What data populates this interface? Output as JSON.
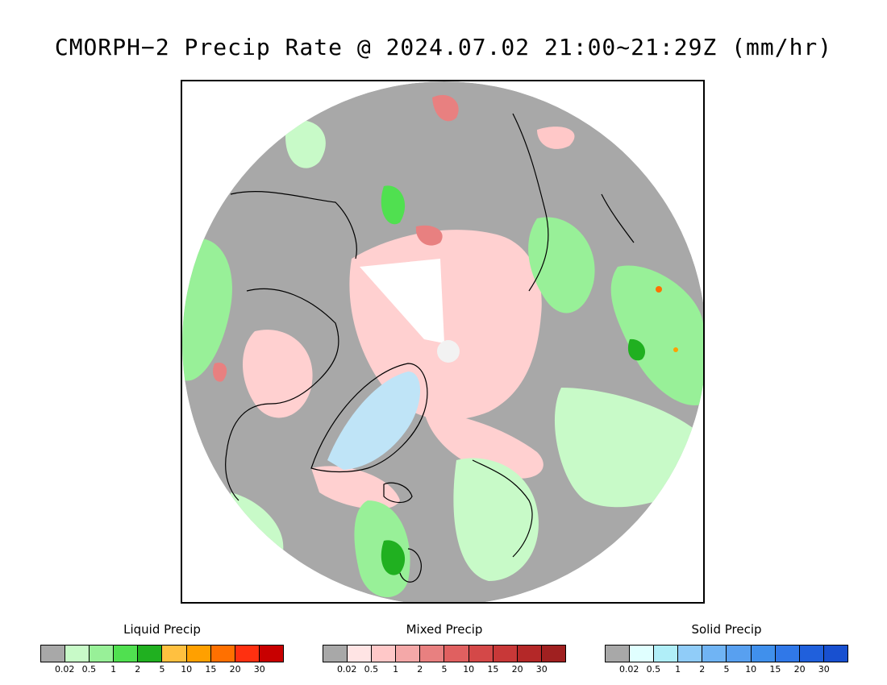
{
  "title": "CMORPH−2 Precip Rate @ 2024.07.02 21:00~21:29Z (mm/hr)",
  "map": {
    "projection": "north-polar-stereographic",
    "colors": {
      "no_precip": "#a8a8a8",
      "outside": "#ffffff",
      "coastline": "#000000",
      "pole_gap": "#ffffff",
      "greenland_ice": "#bfe4f7"
    }
  },
  "legends": [
    {
      "title": "Liquid Precip",
      "colors": [
        "#a8a8a8",
        "#c8fac8",
        "#98f098",
        "#50e050",
        "#20b020",
        "#ffc040",
        "#ffa000",
        "#ff7000",
        "#ff3010",
        "#c80000"
      ],
      "ticks": [
        "0.02",
        "0.5",
        "1",
        "2",
        "5",
        "10",
        "15",
        "20",
        "30"
      ]
    },
    {
      "title": "Mixed Precip",
      "colors": [
        "#a8a8a8",
        "#ffe4e4",
        "#ffc8c8",
        "#f4a8a8",
        "#e88080",
        "#e06060",
        "#d44848",
        "#c83838",
        "#b42828",
        "#a02020"
      ],
      "ticks": [
        "0.02",
        "0.5",
        "1",
        "2",
        "5",
        "10",
        "15",
        "20",
        "30"
      ]
    },
    {
      "title": "Solid Precip",
      "colors": [
        "#a8a8a8",
        "#e0ffff",
        "#b0eef8",
        "#90ccf8",
        "#70b4f4",
        "#58a0f0",
        "#4090ec",
        "#3078e8",
        "#2060dc",
        "#1850d0"
      ],
      "ticks": [
        "0.02",
        "0.5",
        "1",
        "2",
        "5",
        "10",
        "15",
        "20",
        "30"
      ]
    }
  ]
}
